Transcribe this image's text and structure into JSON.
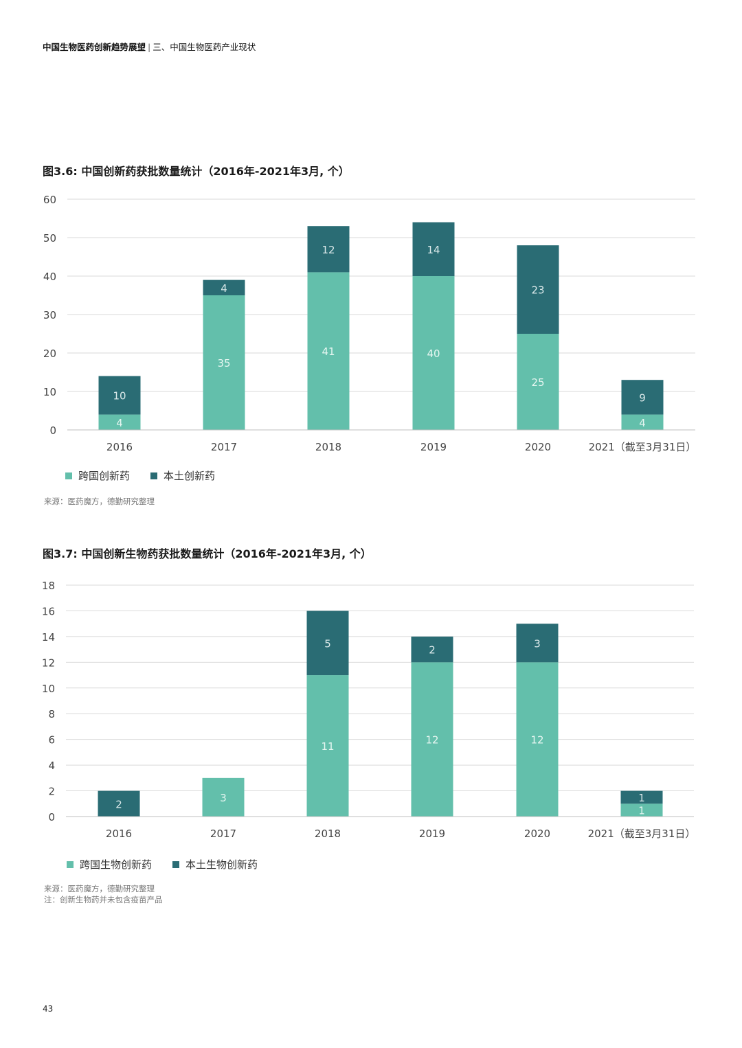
{
  "header": {
    "report_title": "中国生物医药创新趋势展望",
    "separator": "|",
    "section": "三、中国生物医药产业现状"
  },
  "colors": {
    "light": "#63bfab",
    "dark": "#2a6c74",
    "grid": "#d9d9d9",
    "axis_text": "#444444"
  },
  "figures": [
    {
      "title": "图3.6: 中国创新药获批数量统计（2016年-2021年3月, 个）",
      "legend": [
        "跨国创新药",
        "本土创新药"
      ],
      "source": "来源：医药魔方，德勤研究整理",
      "notes": []
    },
    {
      "title": "图3.7: 中国创新生物药获批数量统计（2016年-2021年3月, 个）",
      "legend": [
        "跨国生物创新药",
        "本土生物创新药"
      ],
      "source": "来源：医药魔方，德勤研究整理",
      "notes": [
        "注：创新生物药并未包含疫苗产品"
      ]
    }
  ],
  "chart_data": [
    {
      "type": "bar",
      "stacked": true,
      "categories": [
        "2016",
        "2017",
        "2018",
        "2019",
        "2020",
        "2021（截至3月31日）"
      ],
      "series": [
        {
          "name": "跨国创新药",
          "values": [
            4,
            35,
            41,
            40,
            25,
            4
          ]
        },
        {
          "name": "本土创新药",
          "values": [
            10,
            4,
            12,
            14,
            23,
            9
          ]
        }
      ],
      "title": "图3.6: 中国创新药获批数量统计（2016年-2021年3月, 个）",
      "xlabel": "",
      "ylabel": "",
      "ylim": [
        0,
        60
      ],
      "yticks": [
        0,
        10,
        20,
        30,
        40,
        50,
        60
      ],
      "grid": true,
      "legend_position": "bottom-left"
    },
    {
      "type": "bar",
      "stacked": true,
      "categories": [
        "2016",
        "2017",
        "2018",
        "2019",
        "2020",
        "2021（截至3月31日）"
      ],
      "series": [
        {
          "name": "跨国生物创新药",
          "values": [
            0,
            3,
            11,
            12,
            12,
            1
          ]
        },
        {
          "name": "本土生物创新药",
          "values": [
            2,
            0,
            5,
            2,
            3,
            1
          ]
        }
      ],
      "title": "图3.7: 中国创新生物药获批数量统计（2016年-2021年3月, 个）",
      "xlabel": "",
      "ylabel": "",
      "ylim": [
        0,
        18
      ],
      "yticks": [
        0,
        2,
        4,
        6,
        8,
        10,
        12,
        14,
        16,
        18
      ],
      "grid": true,
      "legend_position": "bottom-left"
    }
  ],
  "page_number": "43"
}
